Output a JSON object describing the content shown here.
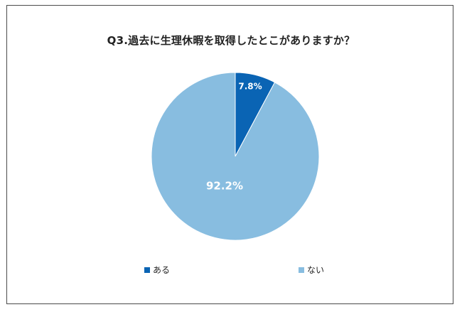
{
  "chart_data": {
    "type": "pie",
    "title": "Q3.過去に生理休暇を取得したとこがありますか？",
    "categories": [
      "ある",
      "ない"
    ],
    "values": [
      7.8,
      92.2
    ],
    "labels": [
      "7.8%",
      "92.2%"
    ],
    "colors": [
      "#0a64b4",
      "#88bde0"
    ],
    "legend_position": "bottom"
  }
}
